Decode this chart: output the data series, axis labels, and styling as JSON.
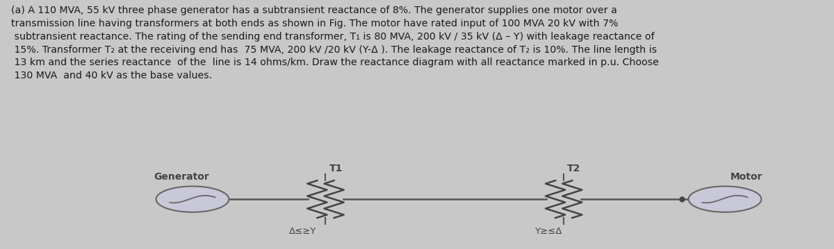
{
  "bg_color": "#c8c8c8",
  "text_color": "#1a1a1a",
  "diagram_bg": "#dce8f0",
  "line_color": "#555555",
  "component_color": "#444444",
  "circle_face": "#c8c8d8",
  "circle_edge": "#666666",
  "title_lines": [
    "(a) A 110 MVA, 55 kV three phase generator has a subtransient reactance of 8%. The generator supplies one motor over a",
    "transmission line having transformers at both ends as shown in Fig. The motor have rated input of 100 MVA 20 kV with 7%",
    " subtransient reactance. The rating of the sending end transformer, T₁ is 80 MVA, 200 kV / 35 kV (Δ – Y) with leakage reactance of",
    " 15%. Transformer T₂ at the receiving end has  75 MVA, 200 kV /20 kV (Y-Δ ). The leakage reactance of T₂ is 10%. The line length is",
    " 13 km and the series reactance  of the  line is 14 ohms/km. Draw the reactance diagram with all reactance marked in p.u. Choose",
    " 130 MVA  and 40 kV as the base values."
  ],
  "generator_label": "Generator",
  "t1_label": "T1",
  "t2_label": "T2",
  "motor_label": "Motor",
  "delta_y_label": "Δ≤≥Y",
  "y_delta_label": "Y≥≤Δ"
}
